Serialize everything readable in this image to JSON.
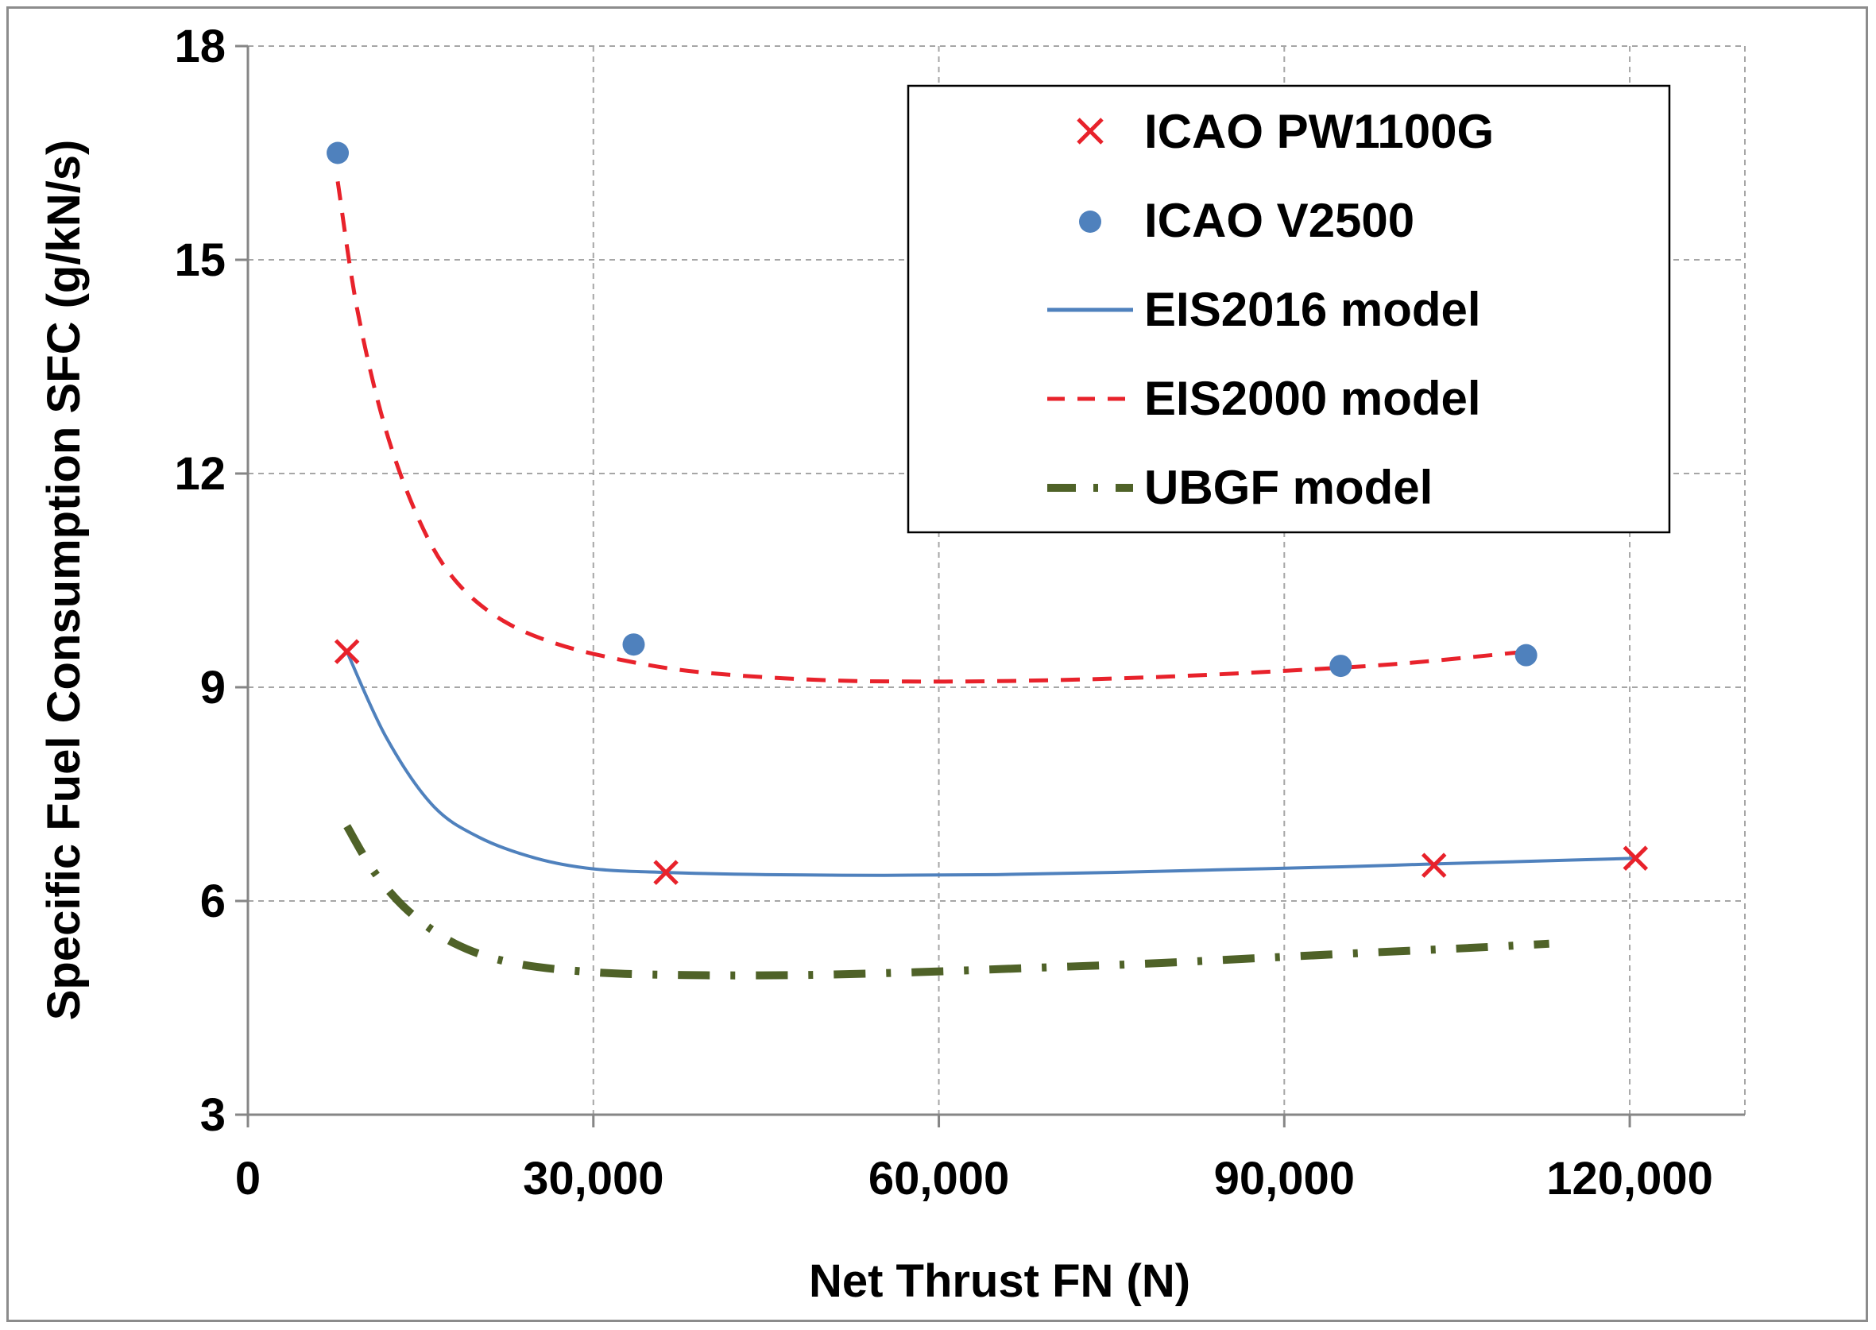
{
  "colors": {
    "pw1100g": "#e8222b",
    "v2500": "#4f81bd",
    "eis2016": "#4f81bd",
    "eis2000": "#e8222b",
    "ubgf": "#4f6228"
  },
  "chart_data": {
    "type": "scatter",
    "title": "",
    "xlabel": "Net Thrust FN (N)",
    "ylabel": "Specific Fuel Consumption SFC (g/kN/s)",
    "xlim": [
      0,
      130000
    ],
    "ylim": [
      3,
      18
    ],
    "xticks": [
      0,
      30000,
      60000,
      90000,
      120000
    ],
    "xtick_labels": [
      "0",
      "30,000",
      "60,000",
      "90,000",
      "120,000"
    ],
    "yticks": [
      3,
      6,
      9,
      12,
      15,
      18
    ],
    "ytick_labels": [
      "3",
      "6",
      "9",
      "12",
      "15",
      "18"
    ],
    "grid": true,
    "legend_position": "top-right",
    "series": [
      {
        "name": "ICAO PW1100G",
        "kind": "marker-x",
        "color": "#e8222b",
        "x": [
          8600,
          36300,
          103000,
          120500
        ],
        "y": [
          9.5,
          6.4,
          6.5,
          6.6
        ]
      },
      {
        "name": "ICAO V2500",
        "kind": "marker-dot",
        "color": "#4f81bd",
        "x": [
          7800,
          33500,
          94900,
          111000
        ],
        "y": [
          16.5,
          9.6,
          9.3,
          9.45
        ]
      },
      {
        "name": "EIS2016 model",
        "kind": "line-solid",
        "color": "#4f81bd",
        "x": [
          8600,
          12000,
          16000,
          20000,
          25000,
          30000,
          36300,
          45000,
          55000,
          65000,
          75000,
          85000,
          95000,
          103000,
          112000,
          120500
        ],
        "y": [
          9.5,
          8.3,
          7.35,
          6.9,
          6.6,
          6.45,
          6.4,
          6.37,
          6.36,
          6.37,
          6.4,
          6.44,
          6.48,
          6.52,
          6.56,
          6.6
        ]
      },
      {
        "name": "EIS2000 model",
        "kind": "line-dashed",
        "color": "#e8222b",
        "x": [
          7800,
          9500,
          12000,
          15000,
          18000,
          22000,
          27000,
          33500,
          40000,
          50000,
          60000,
          70000,
          80000,
          90000,
          100000,
          111000
        ],
        "y": [
          16.1,
          14.3,
          12.6,
          11.3,
          10.5,
          9.95,
          9.6,
          9.35,
          9.2,
          9.1,
          9.08,
          9.1,
          9.15,
          9.23,
          9.33,
          9.5
        ]
      },
      {
        "name": "UBGF model",
        "kind": "line-dashdot",
        "color": "#4f6228",
        "x": [
          8600,
          11000,
          14000,
          18000,
          23000,
          30000,
          38000,
          48000,
          58000,
          68000,
          78000,
          88000,
          98000,
          106000,
          113000
        ],
        "y": [
          7.05,
          6.4,
          5.85,
          5.4,
          5.13,
          5.0,
          4.96,
          4.96,
          5.0,
          5.06,
          5.12,
          5.2,
          5.28,
          5.34,
          5.4
        ]
      }
    ]
  }
}
